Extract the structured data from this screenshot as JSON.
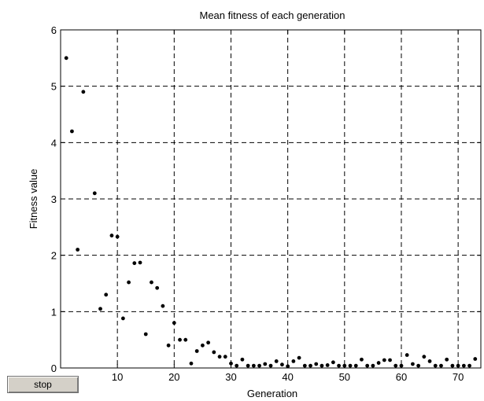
{
  "controls": {
    "stop_label": "stop"
  },
  "chart_data": {
    "type": "scatter",
    "title": "Mean fitness of each generation",
    "xlabel": "Generation",
    "ylabel": "Fitness value",
    "xlim": [
      0,
      74
    ],
    "ylim": [
      0,
      6
    ],
    "xticks": [
      10,
      20,
      30,
      40,
      50,
      60,
      70
    ],
    "yticks": [
      0,
      1,
      2,
      3,
      4,
      5,
      6
    ],
    "grid": true,
    "grid_style": "dashed",
    "marker_color": "#000000",
    "points": [
      [
        1,
        5.5
      ],
      [
        2,
        4.2
      ],
      [
        3,
        2.1
      ],
      [
        4,
        4.9
      ],
      [
        6,
        3.1
      ],
      [
        7,
        1.05
      ],
      [
        8,
        1.3
      ],
      [
        9,
        2.35
      ],
      [
        10,
        2.33
      ],
      [
        11,
        0.88
      ],
      [
        12,
        1.52
      ],
      [
        13,
        1.86
      ],
      [
        14,
        1.87
      ],
      [
        15,
        0.6
      ],
      [
        16,
        1.52
      ],
      [
        17,
        1.42
      ],
      [
        18,
        1.1
      ],
      [
        19,
        0.4
      ],
      [
        20,
        0.8
      ],
      [
        21,
        0.5
      ],
      [
        22,
        0.5
      ],
      [
        23,
        0.08
      ],
      [
        24,
        0.3
      ],
      [
        25,
        0.4
      ],
      [
        26,
        0.45
      ],
      [
        27,
        0.28
      ],
      [
        28,
        0.2
      ],
      [
        29,
        0.2
      ],
      [
        30,
        0.08
      ],
      [
        31,
        0.04
      ],
      [
        32,
        0.15
      ],
      [
        33,
        0.04
      ],
      [
        34,
        0.04
      ],
      [
        35,
        0.04
      ],
      [
        36,
        0.07
      ],
      [
        37,
        0.04
      ],
      [
        38,
        0.12
      ],
      [
        39,
        0.06
      ],
      [
        40,
        0.03
      ],
      [
        41,
        0.12
      ],
      [
        42,
        0.18
      ],
      [
        43,
        0.04
      ],
      [
        44,
        0.04
      ],
      [
        45,
        0.07
      ],
      [
        46,
        0.04
      ],
      [
        47,
        0.05
      ],
      [
        48,
        0.1
      ],
      [
        49,
        0.04
      ],
      [
        50,
        0.04
      ],
      [
        51,
        0.04
      ],
      [
        52,
        0.04
      ],
      [
        53,
        0.15
      ],
      [
        54,
        0.04
      ],
      [
        55,
        0.04
      ],
      [
        56,
        0.09
      ],
      [
        57,
        0.14
      ],
      [
        58,
        0.14
      ],
      [
        59,
        0.04
      ],
      [
        60,
        0.04
      ],
      [
        61,
        0.23
      ],
      [
        62,
        0.07
      ],
      [
        63,
        0.04
      ],
      [
        64,
        0.2
      ],
      [
        65,
        0.12
      ],
      [
        66,
        0.04
      ],
      [
        67,
        0.04
      ],
      [
        68,
        0.15
      ],
      [
        69,
        0.04
      ],
      [
        70,
        0.04
      ],
      [
        71,
        0.04
      ],
      [
        72,
        0.04
      ],
      [
        73,
        0.16
      ]
    ]
  }
}
